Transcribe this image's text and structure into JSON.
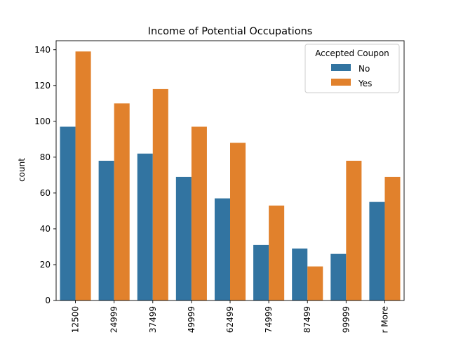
{
  "chart_data": {
    "type": "bar",
    "title": "Income of Potential Occupations",
    "xlabel": "",
    "ylabel": "count",
    "ylim": [
      0,
      145
    ],
    "yticks": [
      0,
      20,
      40,
      60,
      80,
      100,
      120,
      140
    ],
    "categories": [
      "12500",
      "24999",
      "37499",
      "49999",
      "62499",
      "74999",
      "87499",
      "99999",
      "r More"
    ],
    "series": [
      {
        "name": "No",
        "color": "#3274a1",
        "values": [
          97,
          78,
          82,
          69,
          57,
          31,
          29,
          26,
          55
        ]
      },
      {
        "name": "Yes",
        "color": "#e1812c",
        "values": [
          139,
          110,
          118,
          97,
          88,
          53,
          19,
          78,
          69
        ]
      }
    ],
    "legend": {
      "title": "Accepted Coupon",
      "placement": "top-right"
    },
    "grid": false
  }
}
